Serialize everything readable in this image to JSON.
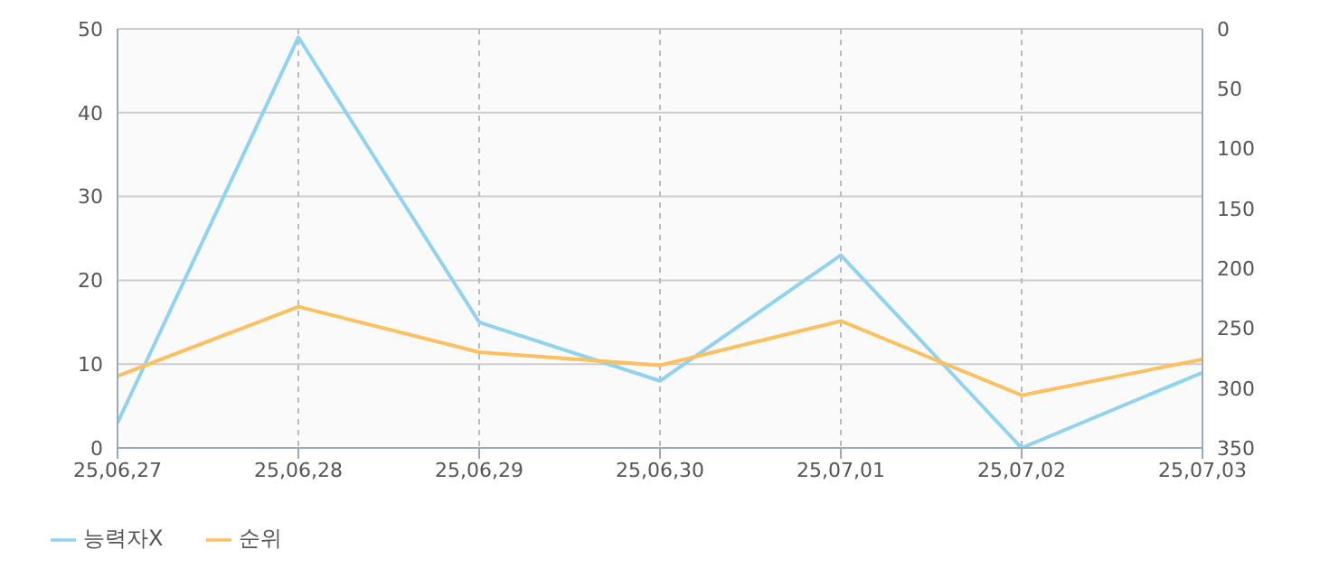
{
  "chart_data": {
    "type": "line",
    "categories": [
      "25,06,27",
      "25,06,28",
      "25,06,29",
      "25,06,30",
      "25,07,01",
      "25,07,02",
      "25,07,03"
    ],
    "series": [
      {
        "name": "능력자X",
        "color": "#8fd3f0",
        "values": [
          3,
          49,
          15,
          8,
          23,
          0,
          9
        ]
      },
      {
        "name": "순위",
        "color": "#fcc060",
        "values": [
          290,
          232,
          270,
          281,
          244,
          306,
          276
        ],
        "axis": "y2"
      }
    ],
    "ylim": [
      0,
      50
    ],
    "yticks": [
      0,
      10,
      20,
      30,
      40,
      50
    ],
    "y2lim": [
      350,
      0
    ],
    "y2ticks": [
      0,
      50,
      100,
      150,
      200,
      250,
      300,
      350
    ],
    "grid": true,
    "legend": "bottom left",
    "marker": "none",
    "line_style": "solid"
  }
}
